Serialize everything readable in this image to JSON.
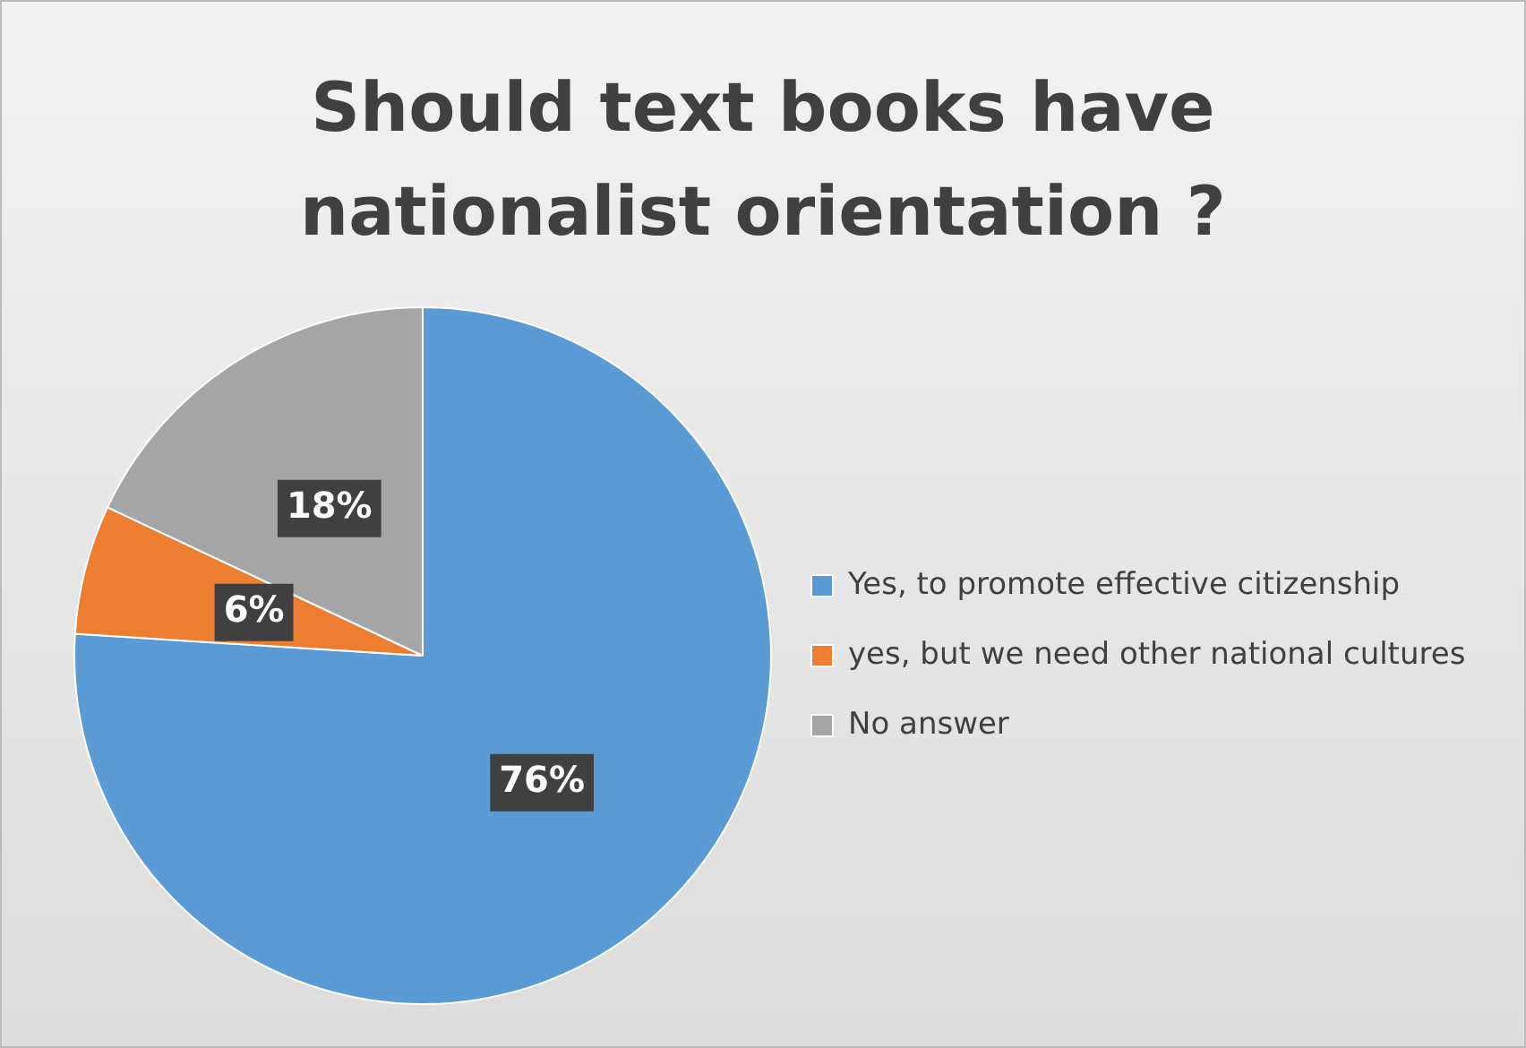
{
  "chart_data": {
    "type": "pie",
    "title": "Should text books have nationalist orientation ?",
    "categories": [
      "Yes, to promote effective citizenship",
      "yes, but we need other national cultures",
      "No answer"
    ],
    "values": [
      76,
      6,
      18
    ],
    "colors": [
      "#5b9bd5",
      "#ed7d31",
      "#a5a5a5"
    ],
    "value_labels": [
      "76%",
      "6%",
      "18%"
    ],
    "legend": "right"
  }
}
